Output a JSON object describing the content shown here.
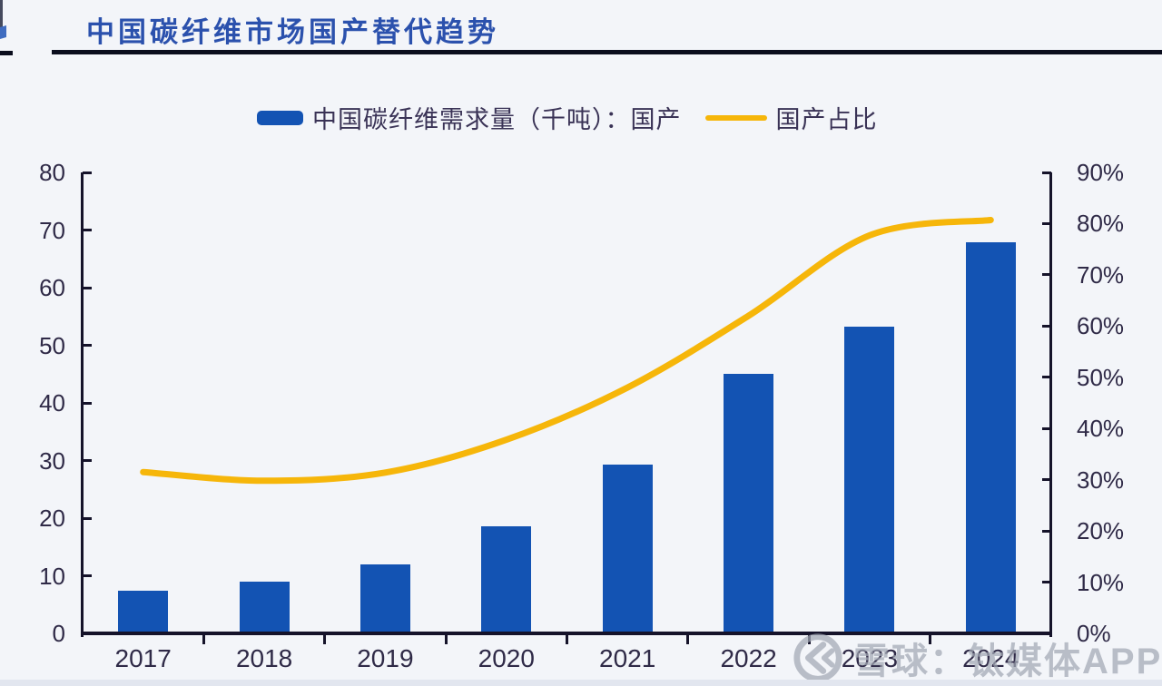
{
  "page": {
    "background": "#f3f5f9"
  },
  "header": {
    "title": "中国碳纤维市场国产替代趋势",
    "title_color": "#2b51ad",
    "underline_color": "#0a0d1d"
  },
  "legend": {
    "bar_label": "中国碳纤维需求量（千吨）：国产",
    "line_label": "国产占比",
    "bar_color": "#1353b3",
    "line_color": "#f6b60a",
    "text_color": "#3a3356"
  },
  "watermark": {
    "icon": "xueqiu-logo",
    "text": "雪球：钛媒体APP",
    "color": "#a2a8b4"
  },
  "chart_data": {
    "type": "bar",
    "subtype": "bar+line combo",
    "title": "中国碳纤维市场国产替代趋势",
    "categories": [
      "2017",
      "2018",
      "2019",
      "2020",
      "2021",
      "2022",
      "2023",
      "2024"
    ],
    "series": [
      {
        "name": "中国碳纤维需求量（千吨）：国产",
        "type": "bar",
        "axis": "left",
        "color": "#1353b3",
        "values": [
          7.4,
          9.0,
          12.0,
          18.6,
          29.3,
          45.1,
          53.2,
          67.9
        ]
      },
      {
        "name": "国产占比",
        "type": "line",
        "axis": "right",
        "color": "#f6b60a",
        "values_pct": [
          31.5,
          29.8,
          31.4,
          37.8,
          48.0,
          62.0,
          77.7,
          80.7
        ]
      }
    ],
    "left_axis": {
      "min": 0,
      "max": 80,
      "step": 10,
      "tick_labels": [
        "0",
        "10",
        "20",
        "30",
        "40",
        "50",
        "60",
        "70",
        "80"
      ]
    },
    "right_axis": {
      "min": 0,
      "max": 90,
      "step": 10,
      "tick_labels": [
        "0%",
        "10%",
        "20%",
        "30%",
        "40%",
        "50%",
        "60%",
        "70%",
        "80%",
        "90%"
      ]
    },
    "grid": false,
    "legend_position": "top-center",
    "colors": {
      "axis": "#15132a",
      "tick_text": "#2f2a47"
    }
  }
}
